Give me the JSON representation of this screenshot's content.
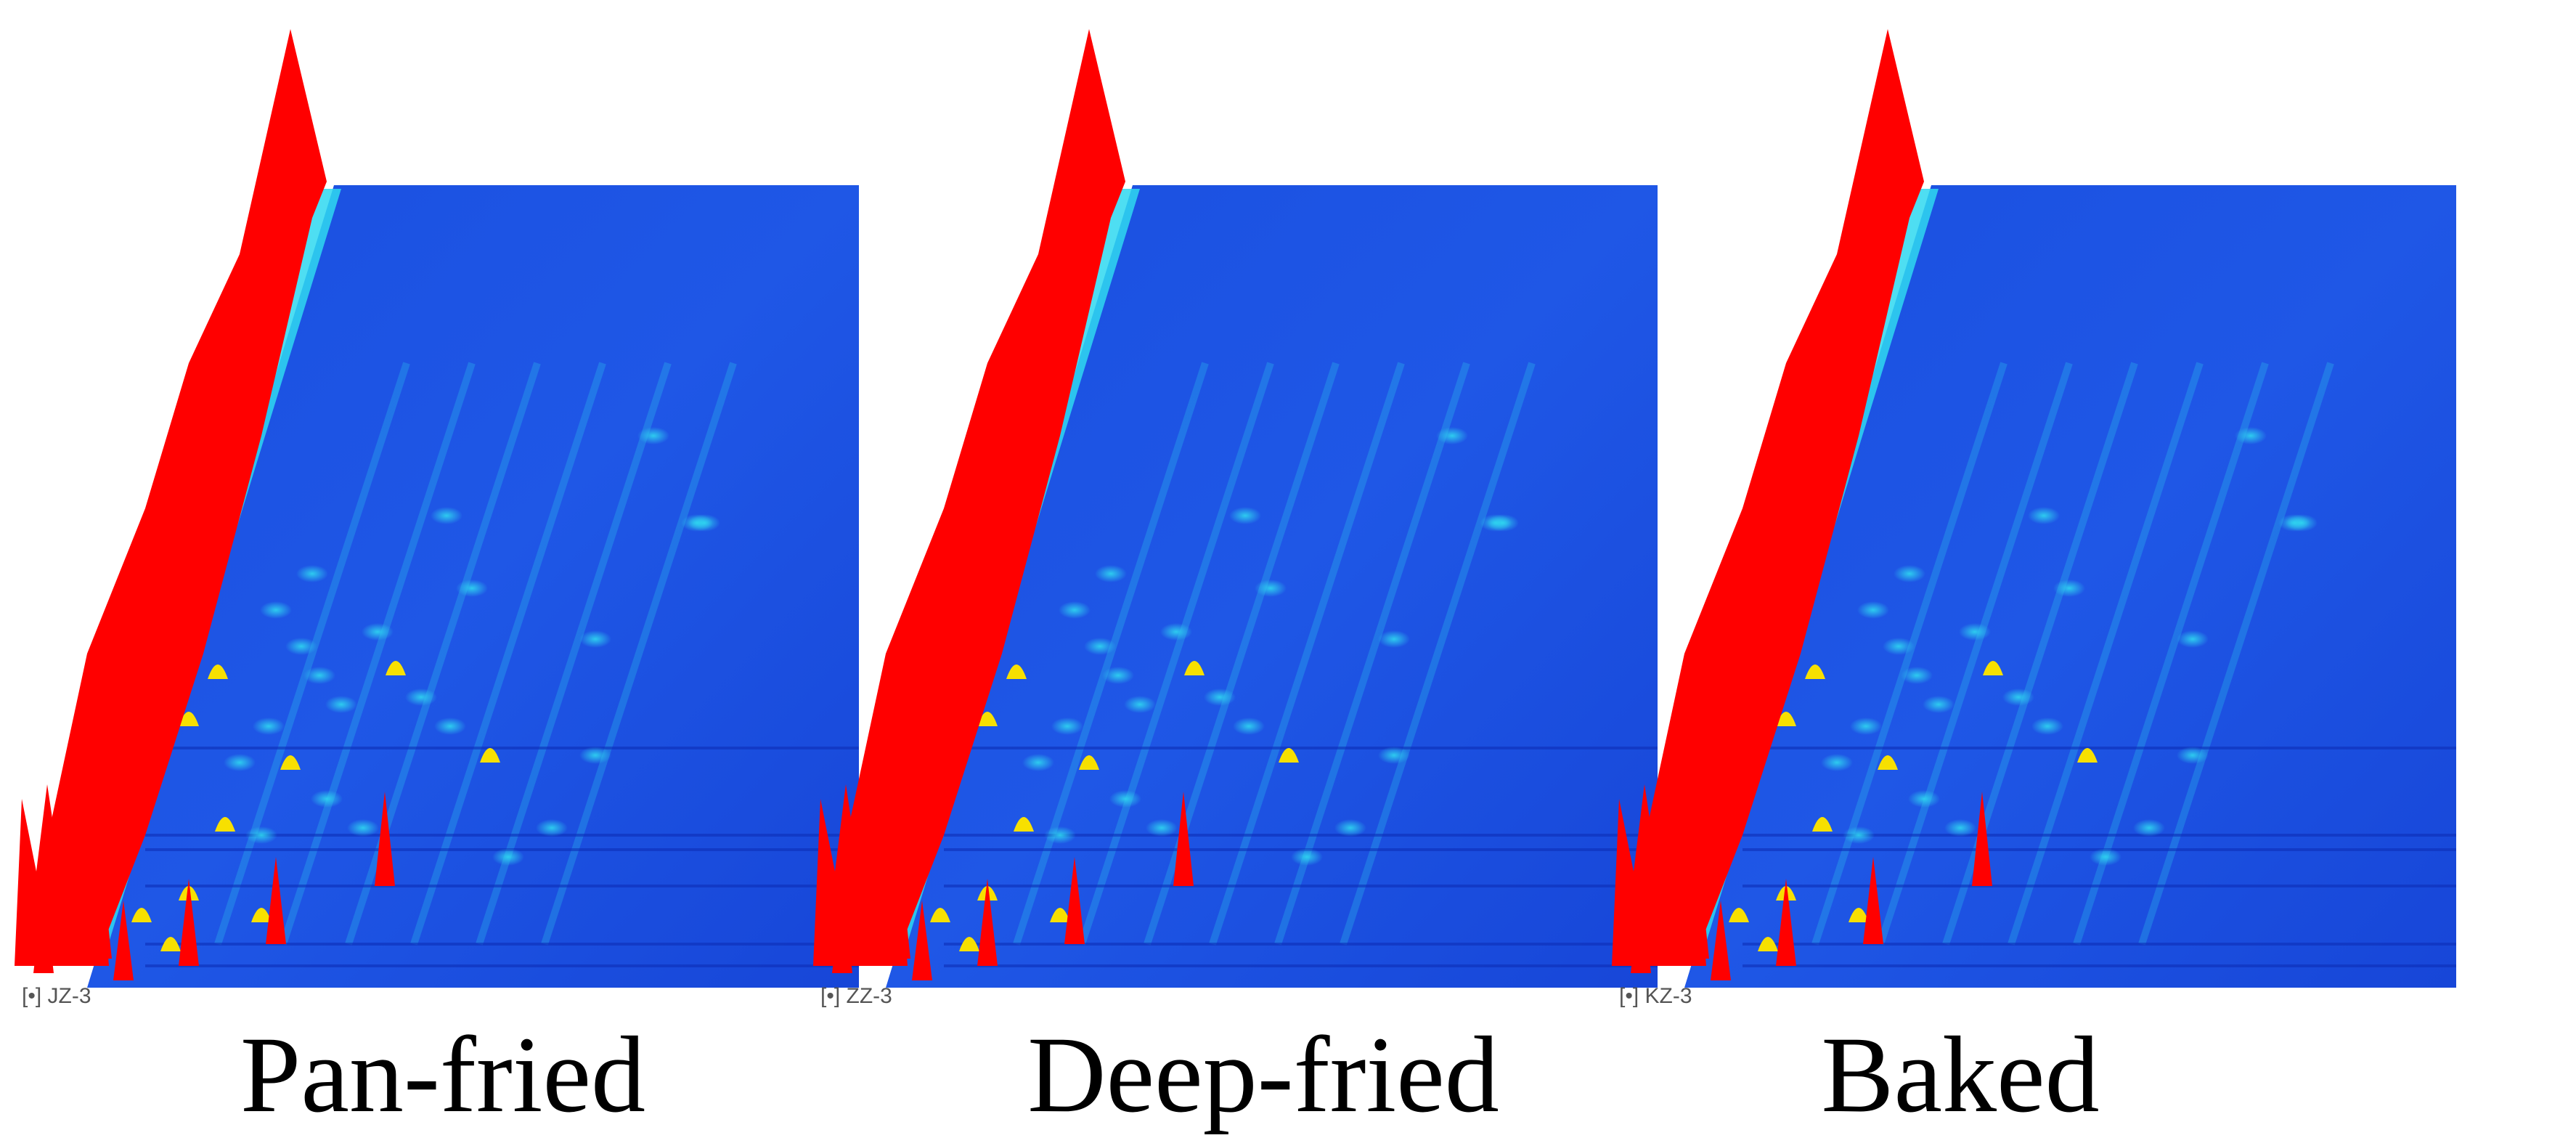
{
  "panels": [
    {
      "label": "Pan-fried",
      "sample_id": "[•] JZ-3"
    },
    {
      "label": "Deep-fried",
      "sample_id": "[•] ZZ-3"
    },
    {
      "label": "Baked",
      "sample_id": "[•] KZ-3"
    }
  ],
  "colors": {
    "background_blue": "#1f57e6",
    "ridge_cyan": "#2fd8f0",
    "peak_yellow": "#f7e000",
    "peak_red": "#ff0000"
  }
}
